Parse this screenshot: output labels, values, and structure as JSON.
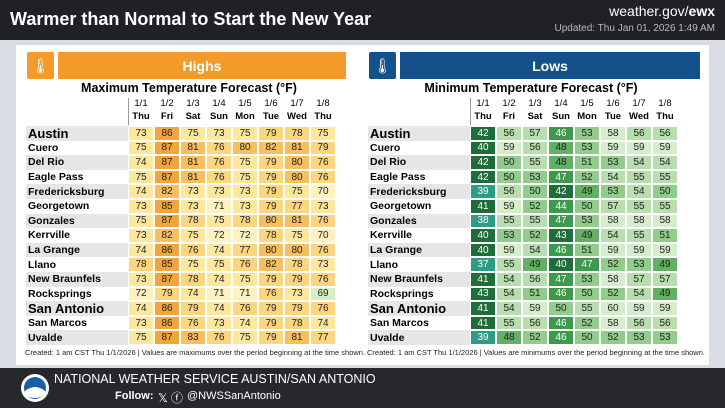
{
  "header": {
    "title": "Warmer than Normal to Start the New Year",
    "site_prefix": "weather.gov/",
    "site_suffix": "ewx",
    "updated": "Updated: Thu Jan 01, 2026 1:49 AM"
  },
  "highs": {
    "label": "Highs",
    "title": "Maximum Temperature Forecast (°F)",
    "dates": [
      "1/1",
      "1/2",
      "1/3",
      "1/4",
      "1/5",
      "1/6",
      "1/7",
      "1/8"
    ],
    "days": [
      "Thu",
      "Fri",
      "Sat",
      "Sun",
      "Mon",
      "Tue",
      "Wed",
      "Thu"
    ],
    "rows": [
      {
        "city": "Austin",
        "values": [
          73,
          86,
          75,
          73,
          75,
          79,
          78,
          75
        ]
      },
      {
        "city": "Cuero",
        "values": [
          75,
          87,
          81,
          76,
          80,
          82,
          81,
          79
        ]
      },
      {
        "city": "Del Rio",
        "values": [
          74,
          87,
          81,
          76,
          75,
          79,
          80,
          76
        ]
      },
      {
        "city": "Eagle Pass",
        "values": [
          75,
          87,
          81,
          76,
          75,
          79,
          80,
          76
        ]
      },
      {
        "city": "Fredericksburg",
        "values": [
          74,
          82,
          73,
          73,
          73,
          79,
          75,
          70
        ]
      },
      {
        "city": "Georgetown",
        "values": [
          73,
          85,
          73,
          71,
          73,
          79,
          77,
          73
        ]
      },
      {
        "city": "Gonzales",
        "values": [
          75,
          87,
          78,
          75,
          78,
          80,
          81,
          76
        ]
      },
      {
        "city": "Kerrville",
        "values": [
          73,
          82,
          75,
          72,
          72,
          78,
          75,
          70
        ]
      },
      {
        "city": "La Grange",
        "values": [
          74,
          86,
          76,
          74,
          77,
          80,
          80,
          76
        ]
      },
      {
        "city": "Llano",
        "values": [
          78,
          85,
          75,
          75,
          76,
          82,
          78,
          73
        ]
      },
      {
        "city": "New Braunfels",
        "values": [
          73,
          87,
          78,
          74,
          75,
          79,
          79,
          76
        ]
      },
      {
        "city": "Rocksprings",
        "values": [
          72,
          79,
          74,
          71,
          71,
          76,
          73,
          69
        ]
      },
      {
        "city": "San Antonio",
        "values": [
          74,
          86,
          79,
          74,
          76,
          79,
          79,
          76
        ]
      },
      {
        "city": "San Marcos",
        "values": [
          73,
          86,
          76,
          73,
          74,
          79,
          78,
          74
        ]
      },
      {
        "city": "Uvalde",
        "values": [
          75,
          87,
          83,
          76,
          75,
          79,
          81,
          77
        ]
      }
    ],
    "footnote": "Created: 1 am CST Thu 1/1/2026  |  Values are maximums over the period beginning at the time shown."
  },
  "lows": {
    "label": "Lows",
    "title": "Minimum Temperature Forecast (°F)",
    "dates": [
      "1/1",
      "1/2",
      "1/3",
      "1/4",
      "1/5",
      "1/6",
      "1/7",
      "1/8"
    ],
    "days": [
      "Thu",
      "Fri",
      "Sat",
      "Sun",
      "Mon",
      "Tue",
      "Wed",
      "Thu"
    ],
    "rows": [
      {
        "city": "Austin",
        "values": [
          42,
          56,
          57,
          46,
          53,
          58,
          56,
          56
        ]
      },
      {
        "city": "Cuero",
        "values": [
          40,
          59,
          56,
          48,
          53,
          59,
          59,
          59
        ]
      },
      {
        "city": "Del Rio",
        "values": [
          42,
          50,
          55,
          48,
          51,
          53,
          54,
          54
        ]
      },
      {
        "city": "Eagle Pass",
        "values": [
          42,
          50,
          53,
          47,
          52,
          54,
          55,
          55
        ]
      },
      {
        "city": "Fredericksburg",
        "values": [
          39,
          56,
          50,
          42,
          49,
          53,
          54,
          50
        ]
      },
      {
        "city": "Georgetown",
        "values": [
          41,
          59,
          52,
          44,
          50,
          57,
          55,
          55
        ]
      },
      {
        "city": "Gonzales",
        "values": [
          38,
          55,
          55,
          47,
          53,
          58,
          58,
          58
        ]
      },
      {
        "city": "Kerrville",
        "values": [
          40,
          53,
          52,
          43,
          49,
          54,
          55,
          51
        ]
      },
      {
        "city": "La Grange",
        "values": [
          40,
          59,
          54,
          46,
          51,
          59,
          59,
          59
        ]
      },
      {
        "city": "Llano",
        "values": [
          37,
          55,
          49,
          40,
          47,
          52,
          53,
          49
        ]
      },
      {
        "city": "New Braunfels",
        "values": [
          41,
          54,
          56,
          47,
          53,
          58,
          57,
          57
        ]
      },
      {
        "city": "Rocksprings",
        "values": [
          43,
          54,
          51,
          46,
          50,
          52,
          54,
          49
        ]
      },
      {
        "city": "San Antonio",
        "values": [
          41,
          54,
          59,
          50,
          55,
          60,
          59,
          59
        ]
      },
      {
        "city": "San Marcos",
        "values": [
          41,
          55,
          56,
          46,
          52,
          58,
          56,
          56
        ]
      },
      {
        "city": "Uvalde",
        "values": [
          39,
          48,
          52,
          46,
          50,
          52,
          53,
          53
        ]
      }
    ],
    "footnote": "Created: 1 am CST Thu 1/1/2026  |  Values are minimums over the period beginning at the time shown."
  },
  "footer": {
    "office": "NATIONAL WEATHER SERVICE AUSTIN/SAN ANTONIO",
    "follow": "Follow:",
    "handle": "@NWSSanAntonio"
  }
}
